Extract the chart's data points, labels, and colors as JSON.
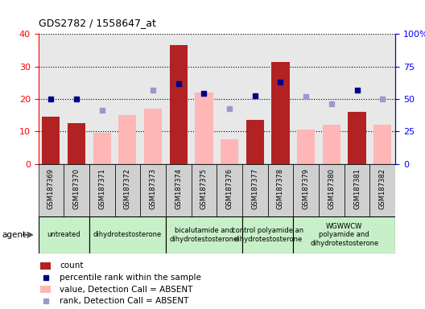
{
  "title": "GDS2782 / 1558647_at",
  "samples": [
    "GSM187369",
    "GSM187370",
    "GSM187371",
    "GSM187372",
    "GSM187373",
    "GSM187374",
    "GSM187375",
    "GSM187376",
    "GSM187377",
    "GSM187378",
    "GSM187379",
    "GSM187380",
    "GSM187381",
    "GSM187382"
  ],
  "count_values": [
    14.5,
    12.5,
    null,
    null,
    null,
    36.5,
    null,
    null,
    13.5,
    31.5,
    null,
    null,
    16.0,
    null
  ],
  "rank_values": [
    50.0,
    50.0,
    null,
    null,
    null,
    62.0,
    54.0,
    null,
    52.5,
    63.0,
    null,
    null,
    57.0,
    null
  ],
  "absent_value_bars": [
    null,
    null,
    9.5,
    15.0,
    17.0,
    null,
    22.0,
    7.5,
    null,
    null,
    10.5,
    12.0,
    null,
    12.0
  ],
  "absent_rank_points": [
    null,
    null,
    41.0,
    null,
    57.0,
    null,
    null,
    42.5,
    null,
    null,
    51.5,
    46.5,
    null,
    50.0
  ],
  "groups": [
    {
      "label": "untreated",
      "start": 0,
      "end": 1,
      "color": "#c8f0c8"
    },
    {
      "label": "dihydrotestosterone",
      "start": 2,
      "end": 4,
      "color": "#c8f0c8"
    },
    {
      "label": "bicalutamide and\ndihydrotestosterone",
      "start": 5,
      "end": 7,
      "color": "#c8f0c8"
    },
    {
      "label": "control polyamide an\ndihydrotestosterone",
      "start": 8,
      "end": 9,
      "color": "#c8f0c8"
    },
    {
      "label": "WGWWCW\npolyamide and\ndihydrotestosterone",
      "start": 10,
      "end": 13,
      "color": "#c8f0c8"
    }
  ],
  "ylim_left": [
    0,
    40
  ],
  "ylim_right": [
    0,
    100
  ],
  "yticks_left": [
    0,
    10,
    20,
    30,
    40
  ],
  "yticks_right": [
    0,
    25,
    50,
    75,
    100
  ],
  "ytick_labels_left": [
    "0",
    "10",
    "20",
    "30",
    "40"
  ],
  "ytick_labels_right": [
    "0",
    "25",
    "50",
    "75",
    "100%"
  ],
  "bar_color_count": "#b22222",
  "bar_color_absent": "#ffb6b6",
  "dot_color_rank": "#00008b",
  "dot_color_absent_rank": "#9999cc",
  "grid_color": "black",
  "plot_bg": "#e8e8e8",
  "sample_bg": "#d0d0d0",
  "agent_label": "agent",
  "legend": [
    {
      "label": "count",
      "color": "#b22222",
      "type": "bar"
    },
    {
      "label": "percentile rank within the sample",
      "color": "#00008b",
      "type": "square"
    },
    {
      "label": "value, Detection Call = ABSENT",
      "color": "#ffb6b6",
      "type": "bar"
    },
    {
      "label": "rank, Detection Call = ABSENT",
      "color": "#9999cc",
      "type": "square"
    }
  ]
}
